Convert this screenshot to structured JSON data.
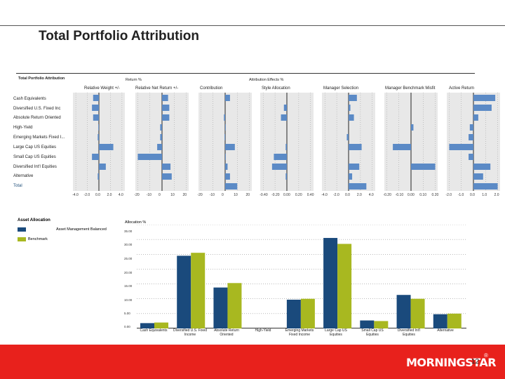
{
  "slide": {
    "title": "Total Portfolio Attribution",
    "page_number": "12",
    "logo_text": "MORNINGSTAR",
    "logo_mark": "®"
  },
  "attribution": {
    "table_title": "Total Portfolio Attribution",
    "group_return": "Return %",
    "group_effects": "Attribution Effects %",
    "columns": [
      "Relative Weight +/-",
      "Relative Net Return +/-",
      "Contribution",
      "Style Allocation",
      "Manager Selection",
      "Manager Benchmark Misfit",
      "Active Return"
    ],
    "rows": [
      "Cash Equivalents",
      "Diversified U.S. Fixed Inc",
      "Absolute Return Oriented",
      "High-Yield",
      "Emerging Markets Fixed I...",
      "Large Cap US Equities",
      "Small Cap US Equities",
      "Diversified Int'l Equities",
      "Alternative",
      "Total"
    ],
    "panels": [
      {
        "ticks": [
          "-4.0",
          "-2.0",
          "0.0",
          "2.0",
          "4.0"
        ],
        "min": -4.5,
        "max": 4.5,
        "values": [
          -1.0,
          -1.2,
          -1.0,
          -0.1,
          -0.2,
          2.5,
          -1.2,
          1.2,
          -0.2,
          0
        ]
      },
      {
        "ticks": [
          "-20",
          "-10",
          "0",
          "10",
          "20"
        ],
        "min": -22,
        "max": 22,
        "values": [
          5,
          6,
          6,
          -1.5,
          -1.5,
          -4,
          -20,
          7,
          8,
          0
        ]
      },
      {
        "ticks": [
          "-20",
          "-10",
          "0",
          "10",
          "20"
        ],
        "min": -22,
        "max": 22,
        "values": [
          4,
          0,
          -1,
          0.5,
          -0.5,
          8,
          0.5,
          2,
          4,
          10
        ]
      },
      {
        "ticks": [
          "-0.40",
          "-0.20",
          "0.00",
          "0.20",
          "0.40"
        ],
        "min": -0.45,
        "max": 0.45,
        "values": [
          0,
          -0.05,
          -0.1,
          0,
          0,
          -0.02,
          -0.22,
          -0.25,
          -0.02,
          0
        ]
      },
      {
        "ticks": [
          "-4.0",
          "-2.0",
          "0.0",
          "2.0",
          "4.0"
        ],
        "min": -4.5,
        "max": 4.5,
        "values": [
          1.4,
          0.3,
          0.9,
          0,
          -0.3,
          2.2,
          0,
          1.8,
          0.6,
          3.0
        ]
      },
      {
        "ticks": [
          "-0.20",
          "-0.10",
          "0.00",
          "0.10",
          "0.20"
        ],
        "min": -0.22,
        "max": 0.22,
        "values": [
          0,
          0,
          0,
          0.02,
          0,
          -0.15,
          0,
          0.2,
          0,
          0
        ]
      },
      {
        "ticks": [
          "-2.0",
          "-1.0",
          "0.0",
          "1.0",
          "2.0"
        ],
        "min": -2.2,
        "max": 2.2,
        "values": [
          1.8,
          1.5,
          0.4,
          -0.3,
          -0.4,
          -2.0,
          -0.4,
          1.4,
          0.8,
          2.0
        ]
      }
    ]
  },
  "asset_allocation": {
    "title": "Asset Allocation",
    "legend": [
      "Asset Management Balanced",
      "Benchmark"
    ],
    "ylabel": "Allocation %"
  },
  "chart_data": {
    "type": "bar",
    "title": "Asset Allocation",
    "ylabel": "Allocation %",
    "ylim": [
      0,
      35
    ],
    "yticks": [
      "0.00",
      "5.00",
      "10.00",
      "15.00",
      "20.00",
      "25.00",
      "30.00",
      "35.00"
    ],
    "categories": [
      "Cash Equivalents",
      "Diversified U.S. Fixed Income",
      "Absolute Return Oriented",
      "High-Yield",
      "Emerging Markets Fixed Income",
      "Large Cap US Equities",
      "Small Cap US Equities",
      "Diversified Int'l Equities",
      "Alternative"
    ],
    "series": [
      {
        "name": "Asset Management Balanced",
        "color": "#1a4a7c",
        "values": [
          1.8,
          24.5,
          13.8,
          0,
          9.7,
          30.5,
          2.7,
          11.3,
          4.8
        ]
      },
      {
        "name": "Benchmark",
        "color": "#a8b820",
        "values": [
          2.0,
          25.5,
          15.3,
          0,
          10.0,
          28.5,
          2.5,
          10.0,
          5.0
        ]
      }
    ]
  },
  "colors": {
    "bar_blue": "#5b8ac6",
    "panel_bg": "#e8e8e8",
    "series_blue": "#1a4a7c",
    "series_green": "#a8b820",
    "footer_red": "#e8211c"
  }
}
